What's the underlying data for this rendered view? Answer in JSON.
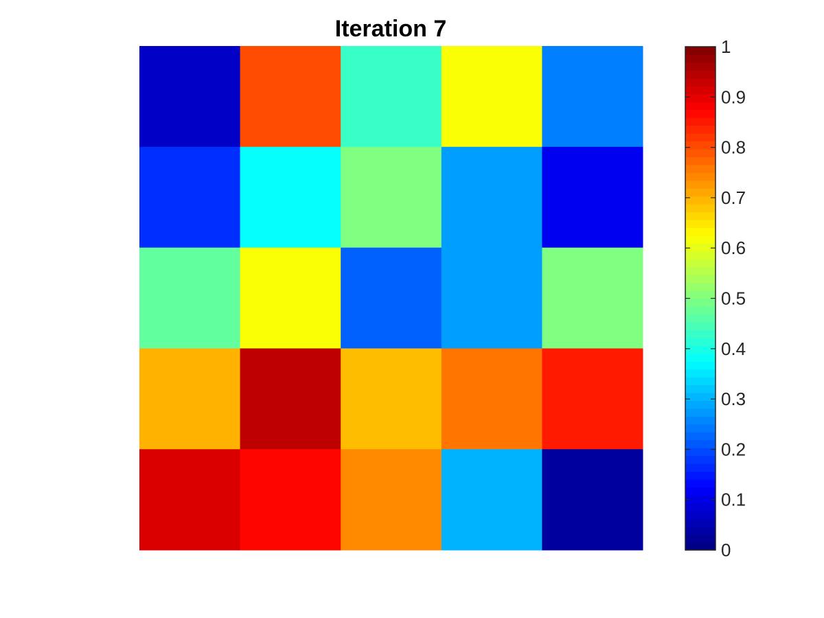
{
  "chart_data": {
    "type": "heatmap",
    "title": "Iteration 7",
    "xlabel": "",
    "ylabel": "",
    "rows": 5,
    "cols": 5,
    "values": [
      [
        0.07,
        0.8,
        0.43,
        0.62,
        0.25
      ],
      [
        0.17,
        0.38,
        0.5,
        0.28,
        0.11
      ],
      [
        0.47,
        0.62,
        0.22,
        0.28,
        0.5
      ],
      [
        0.7,
        0.94,
        0.69,
        0.76,
        0.85
      ],
      [
        0.91,
        0.87,
        0.74,
        0.3,
        0.03
      ]
    ],
    "colormap": "jet",
    "clim": [
      0,
      1
    ],
    "colorbar": {
      "location": "right",
      "ticks": [
        0,
        0.1,
        0.2,
        0.3,
        0.4,
        0.5,
        0.6,
        0.7,
        0.8,
        0.9,
        1
      ],
      "tick_labels": [
        "0",
        "0.1",
        "0.2",
        "0.3",
        "0.4",
        "0.5",
        "0.6",
        "0.7",
        "0.8",
        "0.9",
        "1"
      ]
    },
    "grid": false,
    "axes_visible": false
  }
}
